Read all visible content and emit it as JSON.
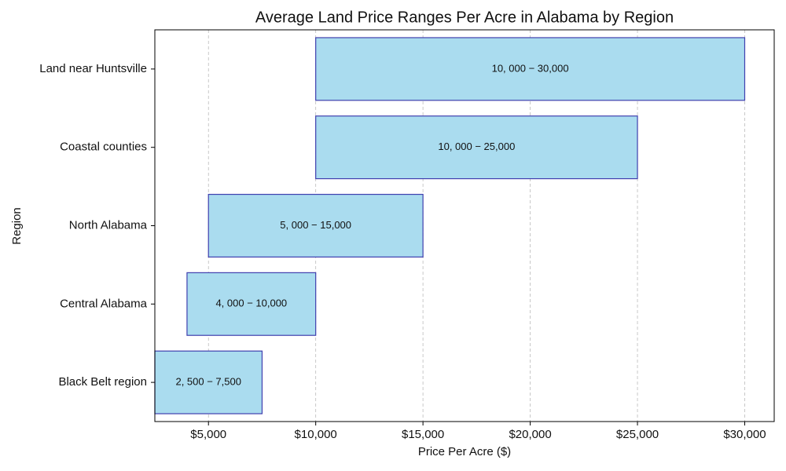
{
  "chart_data": {
    "type": "range-bar",
    "title": "Average Land Price Ranges Per Acre in Alabama by Region",
    "x_label": "Price Per Acre ($)",
    "y_label": "Region",
    "categories": [
      "Black Belt region",
      "Central Alabama",
      "North Alabama",
      "Coastal counties",
      "Land near Huntsville"
    ],
    "start": [
      2500,
      4000,
      5000,
      10000,
      10000
    ],
    "end": [
      7500,
      10000,
      15000,
      25000,
      30000
    ],
    "value_labels": [
      "2, 500 − 7,500",
      "4, 000 − 10,000",
      "5, 000 − 15,000",
      "10, 000 − 25,000",
      "10, 000 − 30,000"
    ],
    "color": "#aadcef",
    "edge_color": "#3f3fae",
    "xlim": [
      2500,
      31375
    ],
    "xticks": [
      {
        "value": 5000,
        "label": "$5,000"
      },
      {
        "value": 10000,
        "label": "$10,000"
      },
      {
        "value": 15000,
        "label": "$15,000"
      },
      {
        "value": 20000,
        "label": "$20,000"
      },
      {
        "value": 25000,
        "label": "$25,000"
      },
      {
        "value": 30000,
        "label": "$30,000"
      }
    ],
    "grid": true
  }
}
